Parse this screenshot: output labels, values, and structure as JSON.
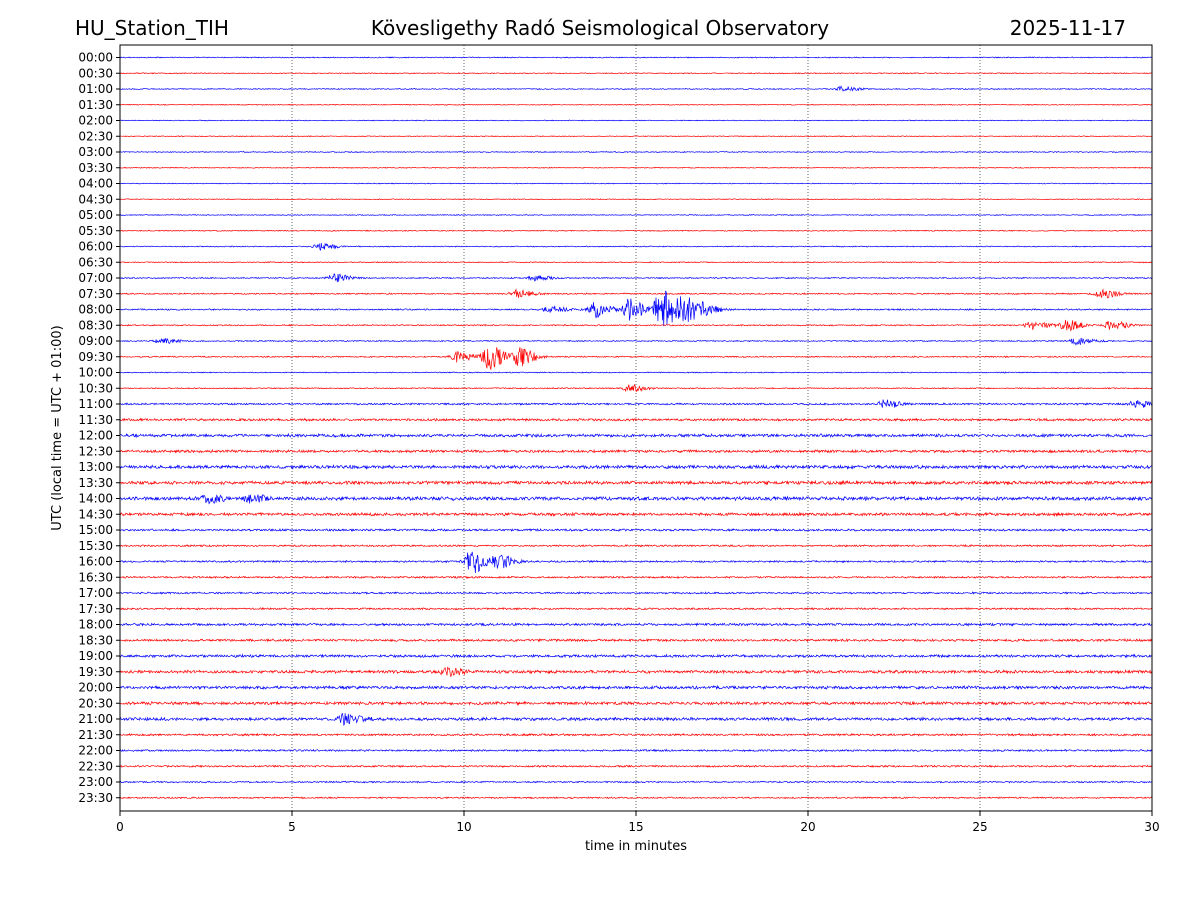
{
  "header": {
    "station": "HU_Station_TIH",
    "observatory": "Kövesligethy Radó Seismological Observatory",
    "date": "2025-11-17"
  },
  "chart_data": {
    "type": "line",
    "title": "Kövesligethy Radó Seismological Observatory",
    "xlabel": "time in minutes",
    "ylabel": "UTC (local time = UTC + 01:00)",
    "xlim": [
      0,
      30
    ],
    "x_ticks": [
      0,
      5,
      10,
      15,
      20,
      25,
      30
    ],
    "x_tick_labels": [
      "0",
      "5",
      "10",
      "15",
      "20",
      "25",
      "30"
    ],
    "grid": "vertical dotted at x ticks",
    "row_labels": [
      "00:00",
      "00:30",
      "01:00",
      "01:30",
      "02:00",
      "02:30",
      "03:00",
      "03:30",
      "04:00",
      "04:30",
      "05:00",
      "05:30",
      "06:00",
      "06:30",
      "07:00",
      "07:30",
      "08:00",
      "08:30",
      "09:00",
      "09:30",
      "10:00",
      "10:30",
      "11:00",
      "11:30",
      "12:00",
      "12:30",
      "13:00",
      "13:30",
      "14:00",
      "14:30",
      "15:00",
      "15:30",
      "16:00",
      "16:30",
      "17:00",
      "17:30",
      "18:00",
      "18:30",
      "19:00",
      "19:30",
      "20:00",
      "20:30",
      "21:00",
      "21:30",
      "22:00",
      "22:30",
      "23:00",
      "23:30"
    ],
    "row_noise_level": [
      0.35,
      0.35,
      0.35,
      0.3,
      0.3,
      0.3,
      0.35,
      0.3,
      0.3,
      0.3,
      0.3,
      0.35,
      0.35,
      0.35,
      0.4,
      0.45,
      0.5,
      0.45,
      0.4,
      0.45,
      0.35,
      0.4,
      0.6,
      0.8,
      1.0,
      0.9,
      1.1,
      1.1,
      1.2,
      1.0,
      0.7,
      0.6,
      0.6,
      0.6,
      0.6,
      0.6,
      0.8,
      0.8,
      0.9,
      1.0,
      1.0,
      1.0,
      1.0,
      0.7,
      0.6,
      0.6,
      0.5,
      0.5
    ],
    "colors": [
      "#0000ff",
      "#ff0000"
    ],
    "events": [
      {
        "row": "01:00",
        "x": 21.0,
        "amp": 2.0
      },
      {
        "row": "06:00",
        "x": 5.8,
        "amp": 2.5
      },
      {
        "row": "07:00",
        "x": 6.2,
        "amp": 3.0
      },
      {
        "row": "07:00",
        "x": 12.0,
        "amp": 2.5
      },
      {
        "row": "07:30",
        "x": 11.5,
        "amp": 3.0
      },
      {
        "row": "07:30",
        "x": 28.5,
        "amp": 3.5
      },
      {
        "row": "08:00",
        "x": 12.5,
        "amp": 2.5
      },
      {
        "row": "08:00",
        "x": 13.8,
        "amp": 6.0
      },
      {
        "row": "08:00",
        "x": 14.8,
        "amp": 8.0
      },
      {
        "row": "08:00",
        "x": 15.7,
        "amp": 16.0
      },
      {
        "row": "08:00",
        "x": 16.4,
        "amp": 10.0
      },
      {
        "row": "08:00",
        "x": 17.0,
        "amp": 3.0
      },
      {
        "row": "08:30",
        "x": 26.5,
        "amp": 3.0
      },
      {
        "row": "08:30",
        "x": 27.5,
        "amp": 4.0
      },
      {
        "row": "08:30",
        "x": 28.8,
        "amp": 3.5
      },
      {
        "row": "09:00",
        "x": 1.2,
        "amp": 2.0
      },
      {
        "row": "09:00",
        "x": 27.8,
        "amp": 3.0
      },
      {
        "row": "09:30",
        "x": 9.8,
        "amp": 4.0
      },
      {
        "row": "09:30",
        "x": 10.7,
        "amp": 10.0
      },
      {
        "row": "09:30",
        "x": 11.6,
        "amp": 7.0
      },
      {
        "row": "10:30",
        "x": 14.8,
        "amp": 3.0
      },
      {
        "row": "11:00",
        "x": 22.2,
        "amp": 3.0
      },
      {
        "row": "11:00",
        "x": 29.5,
        "amp": 3.0
      },
      {
        "row": "14:00",
        "x": 2.5,
        "amp": 3.0
      },
      {
        "row": "14:00",
        "x": 3.8,
        "amp": 3.0
      },
      {
        "row": "16:00",
        "x": 10.2,
        "amp": 9.0
      },
      {
        "row": "16:00",
        "x": 11.0,
        "amp": 5.0
      },
      {
        "row": "19:30",
        "x": 9.5,
        "amp": 3.0
      },
      {
        "row": "21:00",
        "x": 6.5,
        "amp": 3.5
      }
    ]
  }
}
